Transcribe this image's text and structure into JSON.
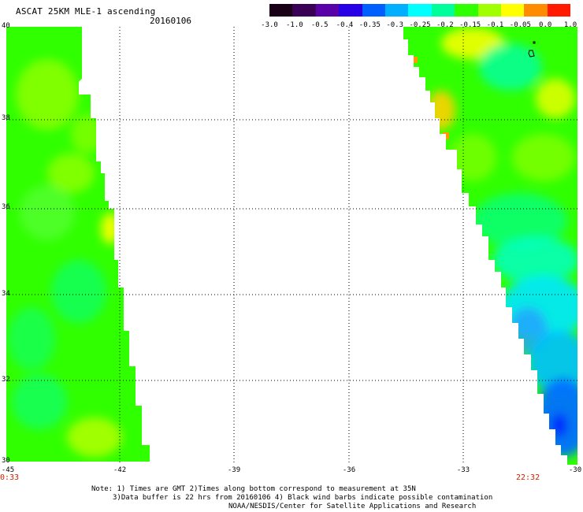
{
  "header": {
    "title": "ASCAT 25KM MLE-1 ascending",
    "date": "20160106"
  },
  "colorbar": {
    "labels": [
      "-3.0",
      "-1.0",
      "-0.5",
      "-0.4",
      "-0.35",
      "-0.3",
      "-0.25",
      "-0.2",
      "-0.15",
      "-0.1",
      "-0.05",
      "0.0",
      "1.0"
    ],
    "colors": [
      "#1a0016",
      "#3a0055",
      "#5a00a8",
      "#2800e6",
      "#0060ff",
      "#00b0ff",
      "#00ffff",
      "#00ff9a",
      "#30ff00",
      "#a0ff00",
      "#ffff00",
      "#ff8c00",
      "#ff1a00"
    ]
  },
  "axes": {
    "lat_labels": [
      "40",
      "38",
      "36",
      "34",
      "32",
      "30"
    ],
    "lon_labels": [
      "-45",
      "-42",
      "-39",
      "-36",
      "-33",
      "-30"
    ]
  },
  "swaths": {
    "left_time": "0:33",
    "right_time": "22:32"
  },
  "notes": {
    "line1": "Note: 1) Times are GMT 2)Times along bottom correspond to measurement at 35N",
    "line2": "3)Data buffer is 22 hrs from 20160106 4) Black wind barbs indicate possible contamination",
    "line3": "NOAA/NESDIS/Center for Satellite Applications and Research"
  },
  "colors": {
    "green": "#30ff00",
    "lime": "#a0ff00",
    "yellow": "#ffff00",
    "orange": "#ff8c00",
    "cyan": "#00ffff",
    "aqua": "#00ffa0",
    "blue": "#0060ff"
  }
}
